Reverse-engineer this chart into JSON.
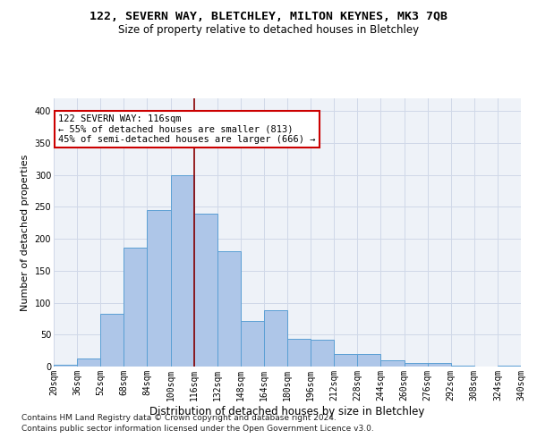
{
  "title1": "122, SEVERN WAY, BLETCHLEY, MILTON KEYNES, MK3 7QB",
  "title2": "Size of property relative to detached houses in Bletchley",
  "xlabel": "Distribution of detached houses by size in Bletchley",
  "ylabel": "Number of detached properties",
  "footnote1": "Contains HM Land Registry data © Crown copyright and database right 2024.",
  "footnote2": "Contains public sector information licensed under the Open Government Licence v3.0.",
  "bin_labels": [
    "20sqm",
    "36sqm",
    "52sqm",
    "68sqm",
    "84sqm",
    "100sqm",
    "116sqm",
    "132sqm",
    "148sqm",
    "164sqm",
    "180sqm",
    "196sqm",
    "212sqm",
    "228sqm",
    "244sqm",
    "260sqm",
    "276sqm",
    "292sqm",
    "308sqm",
    "324sqm",
    "340sqm"
  ],
  "bar_heights": [
    3,
    12,
    83,
    186,
    245,
    300,
    239,
    181,
    71,
    88,
    43,
    42,
    19,
    19,
    10,
    5,
    5,
    2,
    0,
    1
  ],
  "bar_color": "#aec6e8",
  "bar_edge_color": "#5a9fd4",
  "vline_color": "#8b0000",
  "annotation_line1": "122 SEVERN WAY: 116sqm",
  "annotation_line2": "← 55% of detached houses are smaller (813)",
  "annotation_line3": "45% of semi-detached houses are larger (666) →",
  "annotation_box_color": "white",
  "annotation_box_edge": "#cc0000",
  "ylim": [
    0,
    420
  ],
  "yticks": [
    0,
    50,
    100,
    150,
    200,
    250,
    300,
    350,
    400
  ],
  "grid_color": "#d0d8e8",
  "bg_color": "#eef2f8",
  "title_fontsize": 9.5,
  "subtitle_fontsize": 8.5,
  "ylabel_fontsize": 8,
  "xlabel_fontsize": 8.5,
  "tick_fontsize": 7,
  "footnote_fontsize": 6.5,
  "annot_fontsize": 7.5
}
